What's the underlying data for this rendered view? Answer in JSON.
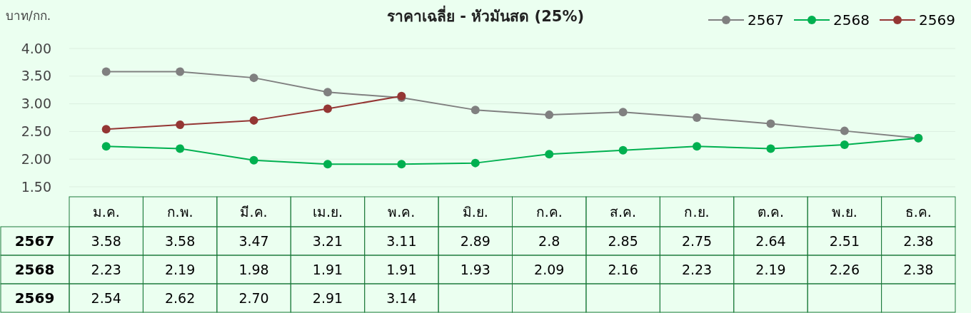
{
  "chart_data": {
    "type": "line",
    "title": "ราคาเฉลี่ย - หัวมันสด (25%)",
    "ylabel": "บาท/กก.",
    "categories": [
      "ม.ค.",
      "ก.พ.",
      "มี.ค.",
      "เม.ย.",
      "พ.ค.",
      "มิ.ย.",
      "ก.ค.",
      "ส.ค.",
      "ก.ย.",
      "ต.ค.",
      "พ.ย.",
      "ธ.ค."
    ],
    "series": [
      {
        "name": "2567",
        "color": "#808080",
        "values": [
          3.58,
          3.58,
          3.47,
          3.21,
          3.11,
          2.89,
          2.8,
          2.85,
          2.75,
          2.64,
          2.51,
          2.38
        ],
        "value_labels": [
          "3.58",
          "3.58",
          "3.47",
          "3.21",
          "3.11",
          "2.89",
          "2.8",
          "2.85",
          "2.75",
          "2.64",
          "2.51",
          "2.38"
        ]
      },
      {
        "name": "2568",
        "color": "#00b050",
        "values": [
          2.23,
          2.19,
          1.98,
          1.91,
          1.91,
          1.93,
          2.09,
          2.16,
          2.23,
          2.19,
          2.26,
          2.38
        ],
        "value_labels": [
          "2.23",
          "2.19",
          "1.98",
          "1.91",
          "1.91",
          "1.93",
          "2.09",
          "2.16",
          "2.23",
          "2.19",
          "2.26",
          "2.38"
        ]
      },
      {
        "name": "2569",
        "color": "#943634",
        "values": [
          2.54,
          2.62,
          2.7,
          2.91,
          3.14,
          null,
          null,
          null,
          null,
          null,
          null,
          null
        ],
        "value_labels": [
          "2.54",
          "2.62",
          "2.70",
          "2.91",
          "3.14",
          null,
          null,
          null,
          null,
          null,
          null,
          null
        ]
      }
    ],
    "ylim": [
      1.5,
      4
    ],
    "yticks": [
      {
        "value": 1.5,
        "label": "1.50"
      },
      {
        "value": 2,
        "label": "2.00"
      },
      {
        "value": 2.5,
        "label": "2.50"
      },
      {
        "value": 3,
        "label": "3.00"
      },
      {
        "value": 3.5,
        "label": "3.50"
      },
      {
        "value": 4,
        "label": "4.00"
      }
    ],
    "grid": "y",
    "legend": "top right",
    "marker": "circle",
    "line_style": "solid"
  }
}
